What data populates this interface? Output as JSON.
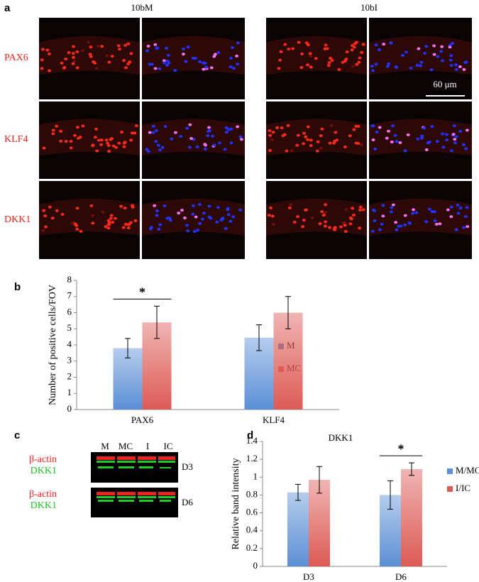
{
  "panel_labels": [
    "a",
    "b",
    "c",
    "d"
  ],
  "micrographs": {
    "columns": [
      "10bM",
      "10bI"
    ],
    "rows": [
      "PAX6",
      "KLF4",
      "DKK1"
    ],
    "scale_bar": "60 μm"
  },
  "blot": {
    "lanes": [
      "M",
      "MC",
      "I",
      "IC"
    ],
    "bands": [
      "β-actin",
      "DKK1"
    ],
    "days": [
      "D3",
      "D6"
    ]
  },
  "chart_data": [
    {
      "type": "bar",
      "ylabel": "Number of positive cells/FOV",
      "categories": [
        "PAX6",
        "KLF4"
      ],
      "series": [
        {
          "name": "M",
          "color": "#5b8fd6",
          "values": [
            3.8,
            4.45
          ],
          "errors": [
            0.6,
            0.8
          ]
        },
        {
          "name": "MC",
          "color": "#dd5a55",
          "values": [
            5.4,
            6.0
          ],
          "errors": [
            1.0,
            1.0
          ]
        }
      ],
      "ylim": [
        0,
        8
      ],
      "yticks": [
        0,
        1,
        2,
        3,
        4,
        5,
        6,
        7,
        8
      ],
      "legend": "right",
      "annotations": [
        "*"
      ]
    },
    {
      "type": "bar",
      "title": "DKK1",
      "ylabel": "Relative band intensity",
      "categories": [
        "D3",
        "D6"
      ],
      "series": [
        {
          "name": "M/MC",
          "color": "#5b8fd6",
          "values": [
            0.83,
            0.8
          ],
          "errors": [
            0.09,
            0.16
          ]
        },
        {
          "name": "I/IC",
          "color": "#dd5a55",
          "values": [
            0.97,
            1.09
          ],
          "errors": [
            0.15,
            0.07
          ]
        }
      ],
      "ylim": [
        0,
        1.4
      ],
      "yticks": [
        0,
        0.2,
        0.4,
        0.6,
        0.8,
        1,
        1.2,
        1.4
      ],
      "legend": "right",
      "annotations": [
        "*"
      ]
    }
  ]
}
